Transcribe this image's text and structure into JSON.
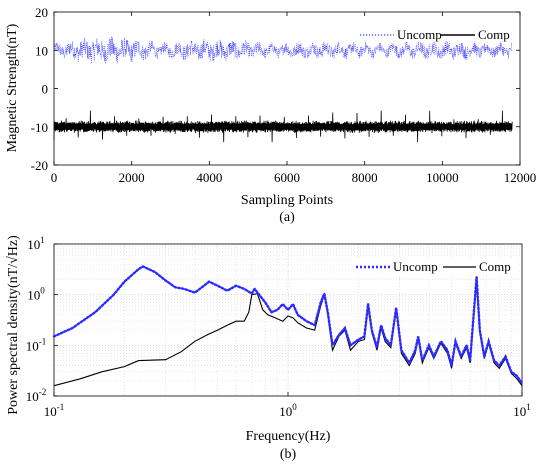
{
  "chart_data": [
    {
      "type": "line",
      "panel_label": "(a)",
      "xlabel": "Sampling Points",
      "ylabel": "Magnetic Strength(nT)",
      "xlim": [
        0,
        12000
      ],
      "ylim": [
        -20,
        20
      ],
      "x_ticks": [
        0,
        2000,
        4000,
        6000,
        8000,
        10000,
        12000
      ],
      "y_ticks": [
        -20,
        -10,
        0,
        10,
        20
      ],
      "x_tick_labels": [
        "0",
        "2000",
        "4000",
        "6000",
        "8000",
        "10000",
        "12000"
      ],
      "y_tick_labels": [
        "-20",
        "-10",
        "0",
        "10",
        "20"
      ],
      "grid": false,
      "legend_position": "top-right",
      "series_length": 11800,
      "series": [
        {
          "name": "Uncomp",
          "mean": 10,
          "range": [
            5,
            15.5
          ],
          "style": "dotted",
          "color": "#3b3bff"
        },
        {
          "name": "Comp",
          "mean": -10,
          "range": [
            -14,
            -6
          ],
          "style": "solid",
          "color": "#000000"
        }
      ]
    },
    {
      "type": "line",
      "panel_label": "(b)",
      "xlabel": "Frequency(Hz)",
      "ylabel": "Power spectral density(nT/√Hz)",
      "x_scale": "log",
      "y_scale": "log",
      "xlim": [
        0.1,
        10
      ],
      "ylim": [
        0.01,
        10
      ],
      "x_tick_labels": [
        "10^-1",
        "10^0",
        "10^1"
      ],
      "y_tick_labels": [
        "10^-2",
        "10^-1",
        "10^0",
        "10^1"
      ],
      "grid": true,
      "legend_position": "top-right",
      "series": [
        {
          "name": "Uncomp",
          "style": "dotted",
          "color": "#2b2bff",
          "points": [
            [
              0.1,
              0.15
            ],
            [
              0.12,
              0.22
            ],
            [
              0.15,
              0.45
            ],
            [
              0.18,
              1.0
            ],
            [
              0.2,
              1.8
            ],
            [
              0.23,
              3.2
            ],
            [
              0.24,
              3.6
            ],
            [
              0.27,
              2.8
            ],
            [
              0.3,
              1.9
            ],
            [
              0.33,
              1.4
            ],
            [
              0.36,
              1.3
            ],
            [
              0.4,
              1.1
            ],
            [
              0.42,
              1.3
            ],
            [
              0.46,
              1.8
            ],
            [
              0.5,
              1.5
            ],
            [
              0.55,
              1.2
            ],
            [
              0.6,
              1.5
            ],
            [
              0.65,
              1.3
            ],
            [
              0.7,
              1.05
            ],
            [
              0.72,
              1.3
            ],
            [
              0.8,
              0.7
            ],
            [
              0.85,
              0.45
            ],
            [
              0.9,
              0.5
            ],
            [
              0.95,
              0.65
            ],
            [
              1.0,
              0.5
            ],
            [
              1.05,
              0.65
            ],
            [
              1.1,
              0.4
            ],
            [
              1.2,
              0.3
            ],
            [
              1.3,
              0.25
            ],
            [
              1.38,
              0.7
            ],
            [
              1.43,
              1.05
            ],
            [
              1.48,
              0.45
            ],
            [
              1.55,
              0.1
            ],
            [
              1.65,
              0.16
            ],
            [
              1.75,
              0.22
            ],
            [
              1.85,
              0.1
            ],
            [
              2.0,
              0.13
            ],
            [
              2.12,
              0.15
            ],
            [
              2.2,
              0.65
            ],
            [
              2.28,
              0.2
            ],
            [
              2.4,
              0.09
            ],
            [
              2.5,
              0.25
            ],
            [
              2.6,
              0.14
            ],
            [
              2.75,
              0.1
            ],
            [
              2.9,
              0.55
            ],
            [
              3.05,
              0.08
            ],
            [
              3.3,
              0.045
            ],
            [
              3.5,
              0.08
            ],
            [
              3.6,
              0.15
            ],
            [
              3.75,
              0.05
            ],
            [
              4.0,
              0.1
            ],
            [
              4.2,
              0.06
            ],
            [
              4.5,
              0.12
            ],
            [
              4.8,
              0.08
            ],
            [
              5.0,
              0.04
            ],
            [
              5.2,
              0.12
            ],
            [
              5.5,
              0.06
            ],
            [
              5.8,
              0.1
            ],
            [
              6.0,
              0.05
            ],
            [
              6.2,
              0.35
            ],
            [
              6.4,
              2.2
            ],
            [
              6.6,
              0.2
            ],
            [
              6.9,
              0.06
            ],
            [
              7.2,
              0.12
            ],
            [
              7.6,
              0.05
            ],
            [
              8.0,
              0.04
            ],
            [
              8.5,
              0.06
            ],
            [
              9.0,
              0.03
            ],
            [
              9.5,
              0.025
            ],
            [
              10.0,
              0.018
            ]
          ]
        },
        {
          "name": "Comp",
          "style": "solid",
          "color": "#000000",
          "points": [
            [
              0.1,
              0.016
            ],
            [
              0.13,
              0.022
            ],
            [
              0.16,
              0.03
            ],
            [
              0.2,
              0.038
            ],
            [
              0.23,
              0.05
            ],
            [
              0.3,
              0.052
            ],
            [
              0.35,
              0.075
            ],
            [
              0.4,
              0.12
            ],
            [
              0.45,
              0.16
            ],
            [
              0.5,
              0.2
            ],
            [
              0.55,
              0.25
            ],
            [
              0.6,
              0.3
            ],
            [
              0.65,
              0.3
            ],
            [
              0.68,
              0.45
            ],
            [
              0.7,
              1.0
            ],
            [
              0.74,
              1.05
            ],
            [
              0.78,
              0.5
            ],
            [
              0.82,
              0.4
            ],
            [
              0.88,
              0.35
            ],
            [
              0.95,
              0.3
            ],
            [
              1.0,
              0.38
            ],
            [
              1.05,
              0.35
            ],
            [
              1.1,
              0.28
            ],
            [
              1.2,
              0.22
            ],
            [
              1.3,
              0.2
            ],
            [
              1.38,
              0.6
            ],
            [
              1.43,
              1.0
            ],
            [
              1.48,
              0.4
            ],
            [
              1.55,
              0.08
            ],
            [
              1.65,
              0.15
            ],
            [
              1.75,
              0.2
            ],
            [
              1.85,
              0.08
            ],
            [
              2.0,
              0.12
            ],
            [
              2.12,
              0.13
            ],
            [
              2.2,
              0.6
            ],
            [
              2.28,
              0.18
            ],
            [
              2.4,
              0.08
            ],
            [
              2.5,
              0.22
            ],
            [
              2.6,
              0.12
            ],
            [
              2.75,
              0.09
            ],
            [
              2.9,
              0.5
            ],
            [
              3.05,
              0.07
            ],
            [
              3.3,
              0.04
            ],
            [
              3.5,
              0.07
            ],
            [
              3.6,
              0.14
            ],
            [
              3.75,
              0.045
            ],
            [
              4.0,
              0.09
            ],
            [
              4.2,
              0.055
            ],
            [
              4.5,
              0.11
            ],
            [
              4.8,
              0.07
            ],
            [
              5.0,
              0.035
            ],
            [
              5.2,
              0.11
            ],
            [
              5.5,
              0.055
            ],
            [
              5.8,
              0.09
            ],
            [
              6.0,
              0.045
            ],
            [
              6.2,
              0.3
            ],
            [
              6.4,
              2.0
            ],
            [
              6.6,
              0.18
            ],
            [
              6.9,
              0.055
            ],
            [
              7.2,
              0.11
            ],
            [
              7.6,
              0.045
            ],
            [
              8.0,
              0.035
            ],
            [
              8.5,
              0.055
            ],
            [
              9.0,
              0.028
            ],
            [
              9.5,
              0.022
            ],
            [
              10.0,
              0.016
            ]
          ]
        }
      ]
    }
  ]
}
